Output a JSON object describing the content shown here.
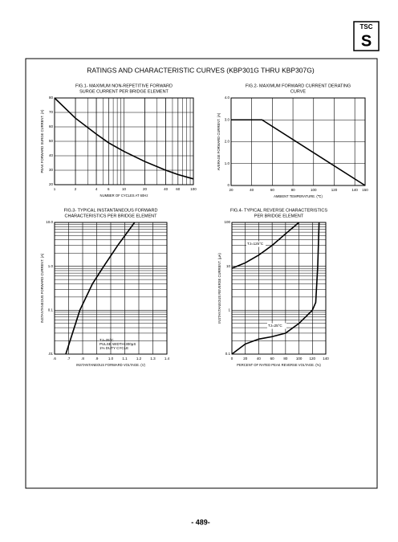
{
  "page": {
    "logo": "TSC",
    "title": "RATINGS AND CHARACTERISTIC CURVES (KBP301G THRU KBP307G)",
    "page_number": "- 489-"
  },
  "chart_data": [
    {
      "type": "line",
      "title": [
        "FIG.1- MAXIMUM NON-REPETITIVE FORWARD",
        "SURGE CURRENT PER BRIDGE ELEMENT"
      ],
      "x_label": "NUMBER OF CYCLES AT 60Hz",
      "y_label": "PEAK FORWARD SURGE CURRENT. (A)",
      "xlog": true,
      "ylog": false,
      "grid": true,
      "xlim": [
        1,
        100
      ],
      "ylim": [
        20,
        80
      ],
      "xticks": [
        1,
        2,
        4,
        6,
        10,
        20,
        40,
        60,
        100
      ],
      "yticks": [
        20,
        30,
        40,
        50,
        60,
        70,
        80
      ],
      "series": [
        {
          "name": null,
          "color": "#000000",
          "x": [
            1,
            2,
            4,
            6,
            10,
            20,
            40,
            60,
            100
          ],
          "values": [
            80,
            66,
            55,
            49,
            43,
            36,
            30,
            27,
            24
          ]
        }
      ]
    },
    {
      "type": "line",
      "title": [
        "FIG.2- MAXIMUM FORWARD CURRENT DERATING",
        "CURVE"
      ],
      "x_label": "AMBIENT TEMPERATURE. (℃)",
      "y_label": "AVERAGE FORWARD CURRENT. (A)",
      "xlog": false,
      "ylog": false,
      "grid": true,
      "xlim": [
        20,
        150
      ],
      "ylim": [
        0,
        4
      ],
      "xticks": [
        20,
        40,
        60,
        80,
        100,
        120,
        140,
        150
      ],
      "yticks": [
        0,
        {
          "value": 1,
          "label": "1.0"
        },
        {
          "value": 2,
          "label": "2.0"
        },
        {
          "value": 3,
          "label": "3.0"
        },
        {
          "value": 4,
          "label": "4.0"
        }
      ],
      "series": [
        {
          "name": null,
          "color": "#000000",
          "x": [
            20,
            50,
            150
          ],
          "values": [
            3,
            3,
            0
          ]
        }
      ]
    },
    {
      "type": "line",
      "title": [
        "FIG.3- TYPICAL INSTANTANEOUS FORWARD",
        "CHARACTERISTICS PER BRIDGE ELEMENT"
      ],
      "x_label": "INSTANTANEOUS FORWARD VOLTAGE. (V)",
      "y_label": "INSTANTANEOUS FORWARD CURRENT. (A)",
      "xlog": false,
      "ylog": true,
      "grid": true,
      "xlim": [
        0.6,
        1.4
      ],
      "ylim": [
        0.01,
        10
      ],
      "xticks": [
        {
          "value": 0.6,
          "label": ".6"
        },
        {
          "value": 0.7,
          "label": ".7"
        },
        {
          "value": 0.8,
          "label": ".8"
        },
        {
          "value": 0.9,
          "label": ".9"
        },
        {
          "value": 1,
          "label": "1.0"
        },
        1.1,
        1.2,
        1.3,
        1.4
      ],
      "yticks": [
        {
          "value": 0.01,
          "label": ".01"
        },
        0.1,
        {
          "value": 1,
          "label": "1.0"
        },
        {
          "value": 10,
          "label": "10.0"
        }
      ],
      "annotations": [
        "TJ=25°C",
        "PULSE WIDTH-300μS",
        "1% DUTY CYCLE"
      ],
      "series": [
        {
          "name": null,
          "color": "#000000",
          "x": [
            0.68,
            0.78,
            0.87,
            0.95,
            1.05,
            1.17
          ],
          "values": [
            0.01,
            0.1,
            0.4,
            1,
            3,
            10
          ]
        }
      ]
    },
    {
      "type": "line",
      "title": [
        "FIG.4- TYPICAL REVERSE CHARACTERISTICS",
        "PER BRIDGE ELEMENT"
      ],
      "x_label": "PERCENT OF RATED PEAK REVERSE VOLTAGE. (%)",
      "y_label": "INSTANTANEOUS REVERSE CURRENT. (μA)",
      "xlog": false,
      "ylog": true,
      "grid": true,
      "xlim": [
        0,
        140
      ],
      "ylim": [
        0.1,
        100
      ],
      "xticks": [
        0,
        20,
        40,
        60,
        80,
        100,
        120,
        140
      ],
      "yticks": [
        0.1,
        1,
        10,
        100
      ],
      "series": [
        {
          "name": "TJ=125°C",
          "color": "#000000",
          "x": [
            0,
            20,
            40,
            60,
            80,
            100
          ],
          "values": [
            9,
            12,
            18,
            30,
            55,
            100
          ]
        },
        {
          "name": "TJ=25°C",
          "color": "#000000",
          "x": [
            0,
            20,
            40,
            60,
            80,
            100,
            120,
            125,
            128,
            130
          ],
          "values": [
            0.1,
            0.17,
            0.22,
            0.25,
            0.3,
            0.5,
            1,
            1.5,
            10,
            100
          ]
        }
      ]
    }
  ]
}
